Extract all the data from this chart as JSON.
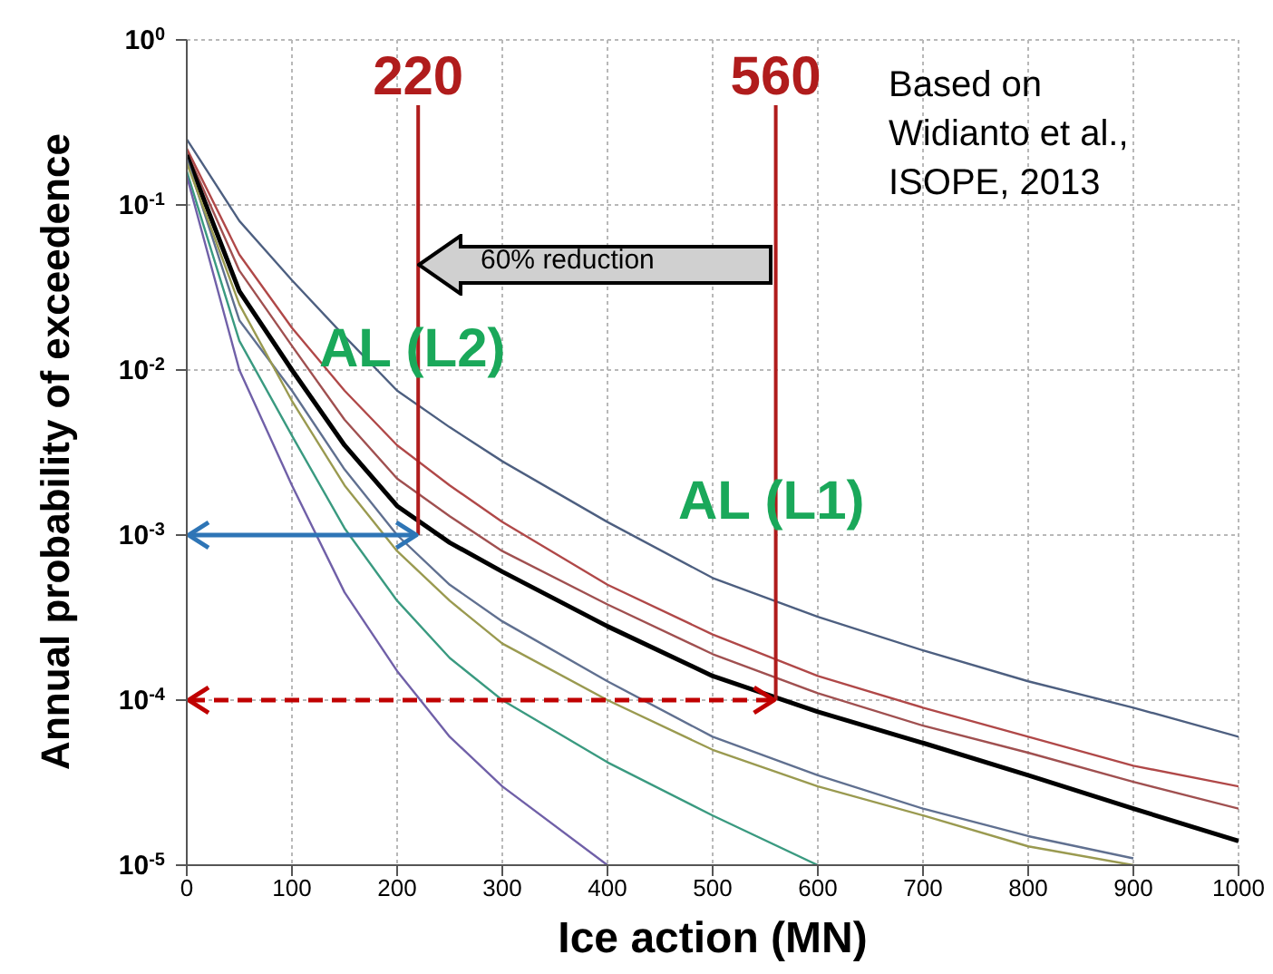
{
  "chart_data": {
    "type": "line",
    "xlabel": "Ice action (MN)",
    "ylabel": "Annual probability of exceedence",
    "log": "y",
    "grid": true,
    "legend": false,
    "marker": "none",
    "line_style": "solid",
    "xlim": [
      0,
      1000
    ],
    "xticks": [
      0,
      100,
      200,
      300,
      400,
      500,
      600,
      700,
      800,
      900,
      1000
    ],
    "ylim": [
      1e-05,
      1
    ],
    "yticks": [
      {
        "value": 1e-05,
        "label": "10$^{-5}$"
      },
      {
        "value": 0.0001,
        "label": "10$^{-4}$"
      },
      {
        "value": 0.001,
        "label": "10$^{-3}$"
      },
      {
        "value": 0.01,
        "label": "10$^{-2}$"
      },
      {
        "value": 0.1,
        "label": "10$^{-1}$"
      },
      {
        "value": 1,
        "label": "10$^{0}$"
      }
    ],
    "x": [
      0,
      50,
      100,
      150,
      200,
      250,
      300,
      400,
      500,
      600,
      700,
      800,
      900,
      1000
    ],
    "series": [
      {
        "color": "#4d5f80",
        "values": [
          0.25,
          0.08,
          0.035,
          0.016,
          0.0075,
          0.0045,
          0.0028,
          0.0012,
          0.00055,
          0.00032,
          0.0002,
          0.00013,
          9e-05,
          6e-05
        ]
      },
      {
        "color": "#b04848",
        "values": [
          0.22,
          0.05,
          0.018,
          0.0075,
          0.0035,
          0.002,
          0.0012,
          0.0005,
          0.00025,
          0.00014,
          9e-05,
          6e-05,
          4e-05,
          3e-05
        ]
      },
      {
        "color": "#a05050",
        "values": [
          0.21,
          0.04,
          0.014,
          0.005,
          0.0022,
          0.0013,
          0.0008,
          0.00038,
          0.00019,
          0.00011,
          7e-05,
          4.8e-05,
          3.2e-05,
          2.2e-05
        ]
      },
      {
        "color": "#000000",
        "values": [
          0.2,
          0.03,
          0.01,
          0.0035,
          0.0015,
          0.0009,
          0.0006,
          0.00028,
          0.00014,
          8.5e-05,
          5.5e-05,
          3.5e-05,
          2.2e-05,
          1.4e-05
        ]
      },
      {
        "color": "#607090",
        "values": [
          0.19,
          0.02,
          0.0075,
          0.0025,
          0.001,
          0.0005,
          0.0003,
          0.00013,
          6e-05,
          3.5e-05,
          2.2e-05,
          1.5e-05,
          1.1e-05,
          null
        ]
      },
      {
        "color": "#9a9a50",
        "values": [
          0.18,
          0.025,
          0.0065,
          0.002,
          0.0008,
          0.0004,
          0.00022,
          0.0001,
          5e-05,
          3e-05,
          2e-05,
          1.3e-05,
          1e-05,
          null
        ]
      },
      {
        "color": "#3a9a80",
        "values": [
          0.16,
          0.015,
          0.004,
          0.0011,
          0.0004,
          0.00018,
          0.0001,
          4.2e-05,
          2e-05,
          1e-05,
          null,
          null,
          null,
          null
        ]
      },
      {
        "color": "#7060a8",
        "values": [
          0.15,
          0.01,
          0.002,
          0.00045,
          0.00015,
          6e-05,
          3e-05,
          1e-05,
          null,
          null,
          null,
          null,
          null,
          null
        ]
      }
    ],
    "ref_lines": [
      {
        "axis": "x",
        "value": 220,
        "label": "220",
        "color": "#b01c1c"
      },
      {
        "axis": "x",
        "value": 560,
        "label": "560",
        "color": "#b01c1c"
      },
      {
        "axis": "y",
        "value": 0.001,
        "color": "#2e75b6"
      },
      {
        "axis": "y",
        "value": 0.0001,
        "color": "#c00000",
        "line_style": "dashed"
      }
    ],
    "annotations": [
      "60% reduction",
      "AL (L2)",
      "AL (L1)",
      "Based on\nWidianto et al.,\nISOPE, 2013"
    ]
  }
}
